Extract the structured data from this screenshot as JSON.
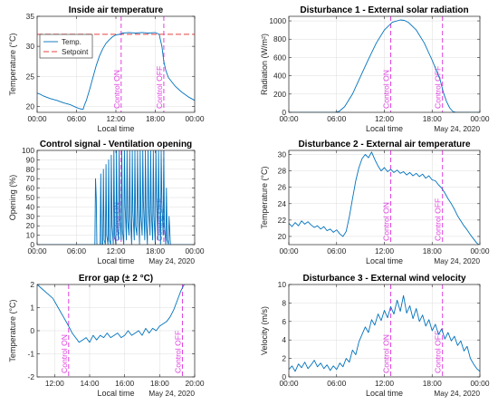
{
  "figure": {
    "date_label": "May 24, 2020"
  },
  "chart_data": [
    {
      "id": "temp",
      "type": "line",
      "title": "Inside air temperature",
      "xlabel": "Local time",
      "ylabel": "Temperature (°C)",
      "xlim": [
        0,
        24
      ],
      "xticks": [
        0,
        6,
        12,
        18,
        24
      ],
      "xtick_labels": [
        "00:00",
        "06:00",
        "12:00",
        "18:00",
        "00:00"
      ],
      "ylim": [
        19,
        35
      ],
      "yticks": [
        20,
        25,
        30,
        35
      ],
      "grid": true,
      "show_date": false,
      "control_on": 12.8,
      "control_off": 19.3,
      "control_on_label": "Control ON",
      "control_off_label": "Control OFF",
      "legend": {
        "position": "top-left",
        "entries": [
          "Temp.",
          "Setpoint"
        ]
      },
      "setpoint": 32,
      "series": [
        {
          "name": "Temp.",
          "color": "#0072bd",
          "x": [
            0,
            0.5,
            1,
            2,
            3,
            4,
            5,
            6,
            6.5,
            7,
            7.2,
            7.5,
            8,
            8.5,
            9,
            9.5,
            10,
            10.5,
            11,
            11.5,
            12,
            12.5,
            12.8,
            13,
            14,
            15,
            16,
            17,
            18,
            18.6,
            19,
            19.3,
            19.6,
            20,
            21,
            22,
            23,
            24
          ],
          "y": [
            22.2,
            22.0,
            21.7,
            21.3,
            21.0,
            20.6,
            20.3,
            19.8,
            19.6,
            19.5,
            20.2,
            21.0,
            22.8,
            24.8,
            26.8,
            28.4,
            29.6,
            30.5,
            31.1,
            31.6,
            31.9,
            32.0,
            32.1,
            32.2,
            32.3,
            32.2,
            32.3,
            32.2,
            32.3,
            32.0,
            30.0,
            27.5,
            26.0,
            24.8,
            23.4,
            22.4,
            21.6,
            21.0
          ]
        }
      ]
    },
    {
      "id": "solar",
      "type": "line",
      "title": "Disturbance 1 - External solar radiation",
      "xlabel": "Local time",
      "ylabel": "Radiation (W/m²)",
      "xlim": [
        0,
        24
      ],
      "xticks": [
        0,
        6,
        12,
        18,
        24
      ],
      "xtick_labels": [
        "00:00",
        "06:00",
        "12:00",
        "18:00",
        "00:00"
      ],
      "ylim": [
        0,
        1050
      ],
      "yticks": [
        0,
        200,
        400,
        600,
        800,
        1000
      ],
      "grid": true,
      "show_date": true,
      "control_on": 12.8,
      "control_off": 19.3,
      "control_on_label": "Control ON",
      "control_off_label": "Control OFF",
      "series": [
        {
          "name": "Radiation",
          "color": "#0072bd",
          "x": [
            0,
            5.8,
            6.3,
            7,
            8,
            9,
            10,
            11,
            12,
            13,
            14,
            14.5,
            15,
            16,
            17,
            18,
            19,
            19.4,
            19.8,
            20.2,
            20.6,
            21,
            24
          ],
          "y": [
            0,
            0,
            10,
            60,
            200,
            390,
            580,
            760,
            900,
            985,
            1010,
            1005,
            985,
            900,
            760,
            570,
            360,
            220,
            120,
            50,
            10,
            0,
            0
          ]
        }
      ]
    },
    {
      "id": "vent",
      "type": "line",
      "title": "Control signal - Ventilation opening",
      "xlabel": "Local time",
      "ylabel": "Opening (%)",
      "xlim": [
        0,
        24
      ],
      "xticks": [
        0,
        6,
        12,
        18,
        24
      ],
      "xtick_labels": [
        "00:00",
        "06:00",
        "12:00",
        "18:00",
        "00:00"
      ],
      "ylim": [
        0,
        100
      ],
      "yticks": [
        0,
        10,
        20,
        30,
        40,
        50,
        60,
        70,
        80,
        90,
        100
      ],
      "grid": true,
      "show_date": true,
      "control_on": 12.8,
      "control_off": 19.3,
      "control_on_label": "Control ON",
      "control_off_label": "Control OFF",
      "series": [
        {
          "name": "Opening",
          "color": "#0072bd",
          "x": [
            0,
            8.8,
            8.9,
            9.0,
            9.1,
            9.2,
            9.6,
            9.7,
            9.8,
            10.0,
            10.1,
            10.2,
            10.4,
            10.5,
            10.6,
            10.8,
            10.9,
            11.0,
            11.2,
            11.3,
            11.4,
            11.6,
            11.7,
            11.8,
            12.0,
            12.1,
            12.2,
            12.4,
            12.5,
            12.6,
            12.8,
            12.9,
            13.0,
            13.2,
            13.3,
            13.4,
            13.6,
            13.7,
            13.8,
            14.0,
            14.1,
            14.2,
            14.4,
            14.5,
            14.6,
            14.8,
            14.9,
            15.0,
            15.2,
            15.3,
            15.4,
            15.6,
            15.7,
            15.8,
            16.0,
            16.1,
            16.2,
            16.4,
            16.5,
            16.6,
            16.8,
            16.9,
            17.0,
            17.2,
            17.3,
            17.4,
            17.6,
            17.7,
            17.8,
            18.0,
            18.1,
            18.2,
            18.4,
            18.5,
            18.6,
            18.8,
            18.9,
            19.0,
            19.2,
            19.3,
            19.4,
            19.6,
            19.7,
            19.8,
            20.0,
            20.1,
            20.3,
            24
          ],
          "y": [
            0,
            0,
            70,
            50,
            0,
            0,
            0,
            75,
            0,
            0,
            80,
            5,
            0,
            85,
            10,
            0,
            90,
            5,
            0,
            95,
            20,
            0,
            100,
            10,
            0,
            100,
            20,
            5,
            100,
            30,
            5,
            100,
            15,
            0,
            100,
            40,
            5,
            100,
            25,
            10,
            100,
            30,
            0,
            100,
            35,
            5,
            100,
            20,
            10,
            100,
            40,
            0,
            100,
            30,
            10,
            100,
            45,
            5,
            100,
            25,
            0,
            100,
            40,
            10,
            100,
            35,
            5,
            100,
            30,
            0,
            100,
            50,
            5,
            100,
            40,
            0,
            100,
            45,
            10,
            100,
            20,
            0,
            60,
            5,
            0,
            30,
            0,
            0
          ]
        }
      ]
    },
    {
      "id": "ext_temp",
      "type": "line",
      "title": "Disturbance 2 - External air temperature",
      "xlabel": "Local time",
      "ylabel": "Temperature (°C)",
      "xlim": [
        0,
        24
      ],
      "xticks": [
        0,
        6,
        12,
        18,
        24
      ],
      "xtick_labels": [
        "00:00",
        "06:00",
        "12:00",
        "18:00",
        "00:00"
      ],
      "ylim": [
        19,
        30.5
      ],
      "yticks": [
        20,
        22,
        24,
        26,
        28,
        30
      ],
      "grid": true,
      "show_date": true,
      "control_on": 12.8,
      "control_off": 19.3,
      "control_on_label": "Control ON",
      "control_off_label": "Control OFF",
      "series": [
        {
          "name": "External temperature",
          "color": "#0072bd",
          "x": [
            0,
            0.4,
            0.8,
            1.2,
            1.6,
            2.0,
            2.4,
            2.8,
            3.2,
            3.6,
            4.0,
            4.4,
            4.8,
            5.2,
            5.6,
            6.0,
            6.4,
            6.8,
            7.2,
            7.6,
            8.0,
            8.4,
            8.8,
            9.2,
            9.6,
            10.0,
            10.4,
            10.8,
            11.2,
            11.6,
            12.0,
            12.4,
            12.8,
            13.2,
            13.6,
            14.0,
            14.4,
            14.8,
            15.2,
            15.6,
            16.0,
            16.4,
            16.8,
            17.2,
            17.6,
            18.0,
            18.4,
            18.8,
            19.2,
            19.6,
            20.0,
            20.4,
            20.8,
            21.2,
            21.6,
            22.0,
            22.4,
            22.8,
            23.2,
            23.6,
            24.0
          ],
          "y": [
            21.6,
            21.2,
            21.7,
            21.3,
            21.9,
            21.5,
            21.8,
            21.4,
            21.1,
            21.3,
            20.9,
            21.2,
            20.7,
            20.9,
            20.5,
            20.8,
            20.3,
            20.0,
            20.6,
            22.4,
            24.6,
            26.8,
            28.4,
            29.5,
            30.0,
            29.6,
            30.3,
            29.4,
            28.6,
            28.0,
            28.4,
            27.9,
            28.2,
            27.8,
            28.1,
            27.7,
            27.9,
            27.5,
            27.8,
            27.4,
            27.7,
            27.3,
            27.6,
            27.1,
            27.4,
            26.9,
            26.8,
            26.3,
            25.9,
            25.3,
            24.6,
            24.0,
            23.3,
            22.5,
            21.9,
            21.3,
            20.8,
            20.2,
            19.7,
            19.2,
            18.9
          ]
        }
      ]
    },
    {
      "id": "error",
      "type": "line",
      "title": "Error gap (± 2 °C)",
      "xlabel": "Local time",
      "ylabel": "Temperature (°C)",
      "xlim": [
        11,
        20
      ],
      "xticks": [
        12,
        14,
        16,
        18,
        20
      ],
      "xtick_labels": [
        "12:00",
        "14:00",
        "16:00",
        "18:00",
        "20:00"
      ],
      "ylim": [
        -2,
        2
      ],
      "yticks": [
        -2,
        -1,
        0,
        1,
        2
      ],
      "grid": true,
      "show_date": true,
      "control_on": 12.8,
      "control_off": 19.3,
      "control_on_label": "Control ON",
      "control_off_label": "Control OFF",
      "series": [
        {
          "name": "Error",
          "color": "#0072bd",
          "x": [
            11.0,
            11.3,
            11.6,
            11.9,
            12.2,
            12.5,
            12.8,
            13.0,
            13.2,
            13.4,
            13.6,
            13.8,
            14.0,
            14.2,
            14.4,
            14.6,
            14.8,
            15.0,
            15.2,
            15.4,
            15.6,
            15.8,
            16.0,
            16.2,
            16.4,
            16.6,
            16.8,
            17.0,
            17.2,
            17.4,
            17.6,
            17.8,
            18.0,
            18.2,
            18.4,
            18.6,
            18.8,
            19.0,
            19.2,
            19.4
          ],
          "y": [
            2.0,
            1.8,
            1.6,
            1.4,
            1.0,
            0.6,
            0.2,
            -0.1,
            -0.3,
            -0.5,
            -0.4,
            -0.3,
            -0.5,
            -0.2,
            -0.4,
            -0.2,
            -0.3,
            -0.1,
            -0.3,
            -0.2,
            -0.1,
            -0.3,
            -0.2,
            0.0,
            -0.2,
            -0.1,
            0.0,
            -0.2,
            0.1,
            -0.1,
            0.1,
            0.0,
            0.2,
            0.3,
            0.4,
            0.6,
            0.9,
            1.3,
            1.7,
            2.0
          ]
        }
      ]
    },
    {
      "id": "wind",
      "type": "line",
      "title": "Disturbance 3 - External wind velocity",
      "xlabel": "Local time",
      "ylabel": "Velocity (m/s)",
      "xlim": [
        0,
        24
      ],
      "xticks": [
        0,
        6,
        12,
        18,
        24
      ],
      "xtick_labels": [
        "00:00",
        "06:00",
        "12:00",
        "18:00",
        "00:00"
      ],
      "ylim": [
        0,
        10
      ],
      "yticks": [
        0,
        2,
        4,
        6,
        8,
        10
      ],
      "grid": true,
      "show_date": true,
      "control_on": 12.8,
      "control_off": 19.3,
      "control_on_label": "Control ON",
      "control_off_label": "Control OFF",
      "series": [
        {
          "name": "Wind velocity",
          "color": "#0072bd",
          "x": [
            0,
            0.4,
            0.8,
            1.2,
            1.6,
            2.0,
            2.4,
            2.8,
            3.2,
            3.6,
            4.0,
            4.4,
            4.8,
            5.2,
            5.6,
            6.0,
            6.4,
            6.8,
            7.2,
            7.6,
            8.0,
            8.4,
            8.8,
            9.2,
            9.6,
            10.0,
            10.4,
            10.8,
            11.2,
            11.6,
            12.0,
            12.4,
            12.8,
            13.2,
            13.6,
            14.0,
            14.4,
            14.8,
            15.2,
            15.6,
            16.0,
            16.4,
            16.8,
            17.2,
            17.6,
            18.0,
            18.4,
            18.8,
            19.2,
            19.6,
            20.0,
            20.4,
            20.8,
            21.2,
            21.6,
            22.0,
            22.4,
            22.8,
            23.2,
            23.6,
            24.0
          ],
          "y": [
            0.8,
            1.2,
            0.6,
            1.4,
            1.0,
            1.6,
            0.9,
            1.3,
            1.8,
            1.1,
            1.5,
            0.9,
            1.3,
            0.7,
            1.2,
            0.8,
            1.5,
            1.1,
            2.0,
            1.6,
            2.9,
            2.4,
            3.8,
            4.6,
            5.4,
            4.8,
            6.2,
            5.6,
            6.8,
            6.1,
            7.2,
            6.4,
            7.6,
            6.8,
            8.3,
            7.1,
            8.8,
            6.9,
            7.7,
            6.3,
            7.4,
            6.0,
            6.7,
            5.5,
            6.2,
            5.0,
            5.7,
            4.6,
            5.2,
            4.1,
            4.8,
            3.9,
            4.4,
            3.4,
            3.9,
            2.8,
            3.3,
            2.0,
            1.4,
            0.9,
            0.6
          ]
        }
      ]
    }
  ]
}
